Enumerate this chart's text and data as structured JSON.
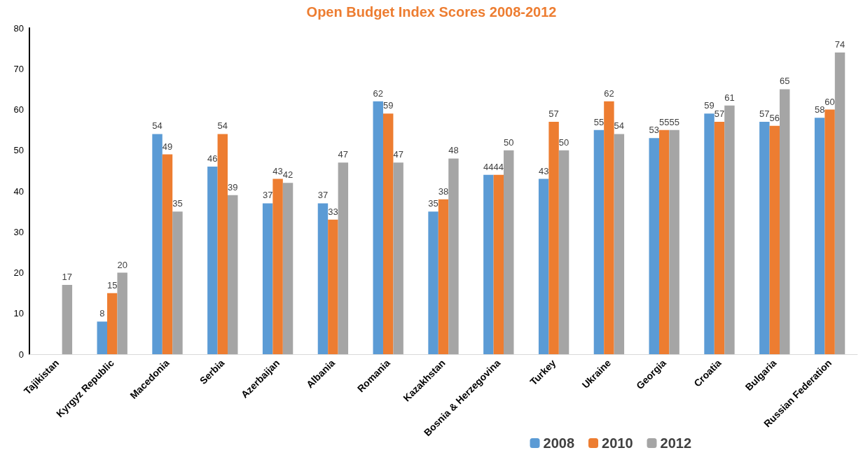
{
  "chart_data": {
    "type": "bar",
    "title": "Open Budget Index Scores 2008-2012",
    "categories": [
      "Tajikistan",
      "Kyrgyz Republic",
      "Macedonia",
      "Serbia",
      "Azerbaijan",
      "Albania",
      "Romania",
      "Kazakhstan",
      "Bosnia & Herzegovina",
      "Turkey",
      "Ukraine",
      "Georgia",
      "Croatia",
      "Bulgaria",
      "Russian Federation"
    ],
    "series": [
      {
        "name": "2008",
        "color": "#5b9bd5",
        "values": [
          null,
          8,
          54,
          46,
          37,
          37,
          62,
          35,
          44,
          43,
          55,
          53,
          59,
          57,
          58
        ]
      },
      {
        "name": "2010",
        "color": "#ed7d31",
        "values": [
          null,
          15,
          49,
          54,
          43,
          33,
          59,
          38,
          44,
          57,
          62,
          55,
          57,
          56,
          60
        ]
      },
      {
        "name": "2012",
        "color": "#a5a5a5",
        "values": [
          17,
          20,
          35,
          39,
          42,
          47,
          47,
          48,
          50,
          50,
          54,
          55,
          61,
          65,
          74
        ]
      }
    ],
    "ylim": [
      0,
      80
    ],
    "yticks": [
      0,
      10,
      20,
      30,
      40,
      50,
      60,
      70,
      80
    ],
    "data_labels": true,
    "grid": false,
    "legend": "bottom right"
  }
}
